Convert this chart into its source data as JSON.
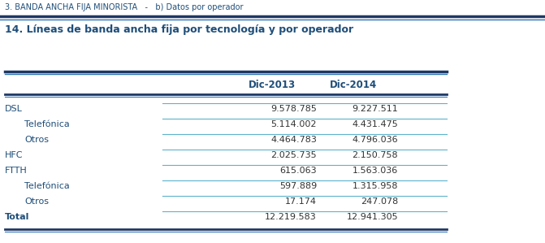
{
  "header_top": "3. BANDA ANCHA FIJA MINORISTA   -   b) Datos por operador",
  "title": "14. Líneas de banda ancha fija por tecnología y por operador",
  "col_headers": [
    "Dic-2013",
    "Dic-2014"
  ],
  "rows": [
    {
      "label": "DSL",
      "indent": false,
      "bold": false,
      "values": [
        "9.578.785",
        "9.227.511"
      ]
    },
    {
      "label": "Telefónica",
      "indent": true,
      "bold": false,
      "values": [
        "5.114.002",
        "4.431.475"
      ]
    },
    {
      "label": "Otros",
      "indent": true,
      "bold": false,
      "values": [
        "4.464.783",
        "4.796.036"
      ]
    },
    {
      "label": "HFC",
      "indent": false,
      "bold": false,
      "values": [
        "2.025.735",
        "2.150.758"
      ]
    },
    {
      "label": "FTTH",
      "indent": false,
      "bold": false,
      "values": [
        "615.063",
        "1.563.036"
      ]
    },
    {
      "label": "Telefónica",
      "indent": true,
      "bold": false,
      "values": [
        "597.889",
        "1.315.958"
      ]
    },
    {
      "label": "Otros",
      "indent": true,
      "bold": false,
      "values": [
        "17.174",
        "247.078"
      ]
    },
    {
      "label": "Total",
      "indent": false,
      "bold": true,
      "values": [
        "12.219.583",
        "12.941.305"
      ]
    }
  ],
  "blue_dark": "#1F3864",
  "blue_mid": "#2E75B6",
  "text_blue": "#1F4E79",
  "line_color_light": "#4BACC6",
  "bg_color": "#FFFFFF",
  "fig_width": 6.71,
  "fig_height": 2.99,
  "dpi": 100
}
